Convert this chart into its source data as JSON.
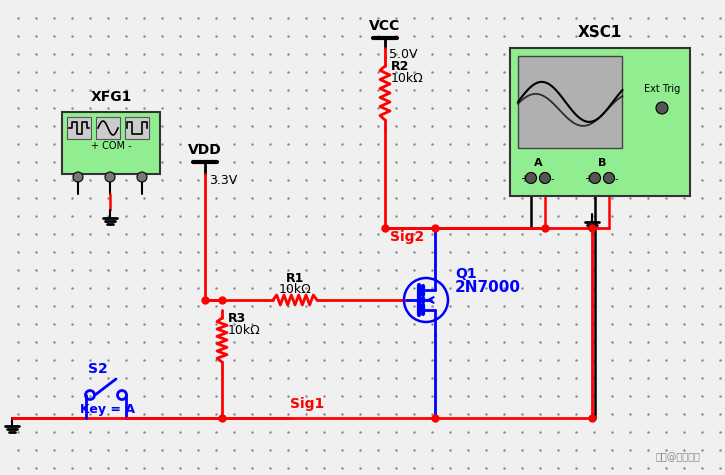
{
  "bg_color": "#f0f0f0",
  "dot_color": "#888888",
  "wire_red": "#ff0000",
  "wire_blue": "#0000ff",
  "wire_black": "#000000",
  "component_fill": "#90ee90",
  "component_border": "#333333",
  "text_black": "#000000",
  "text_blue": "#0000ff",
  "text_red": "#ff0000",
  "vcc_label": "VCC",
  "vcc_voltage": "5.0V",
  "vdd_label": "VDD",
  "vdd_voltage": "3.3V",
  "r1_label": "R1",
  "r1_value": "10kΩ",
  "r2_label": "R2",
  "r2_value": "10kΩ",
  "r3_label": "R3",
  "r3_value": "10kΩ",
  "q1_label": "Q1",
  "q1_model": "2N7000",
  "s2_label": "S2",
  "key_label": "Key = A",
  "sig1_label": "Sig1",
  "sig2_label": "Sig2",
  "xfg1_label": "XFG1",
  "xsc1_label": "XSC1",
  "ext_trig_label": "Ext Trig",
  "channel_a": "A",
  "channel_b": "B",
  "watermark": "头条@心间资讯"
}
